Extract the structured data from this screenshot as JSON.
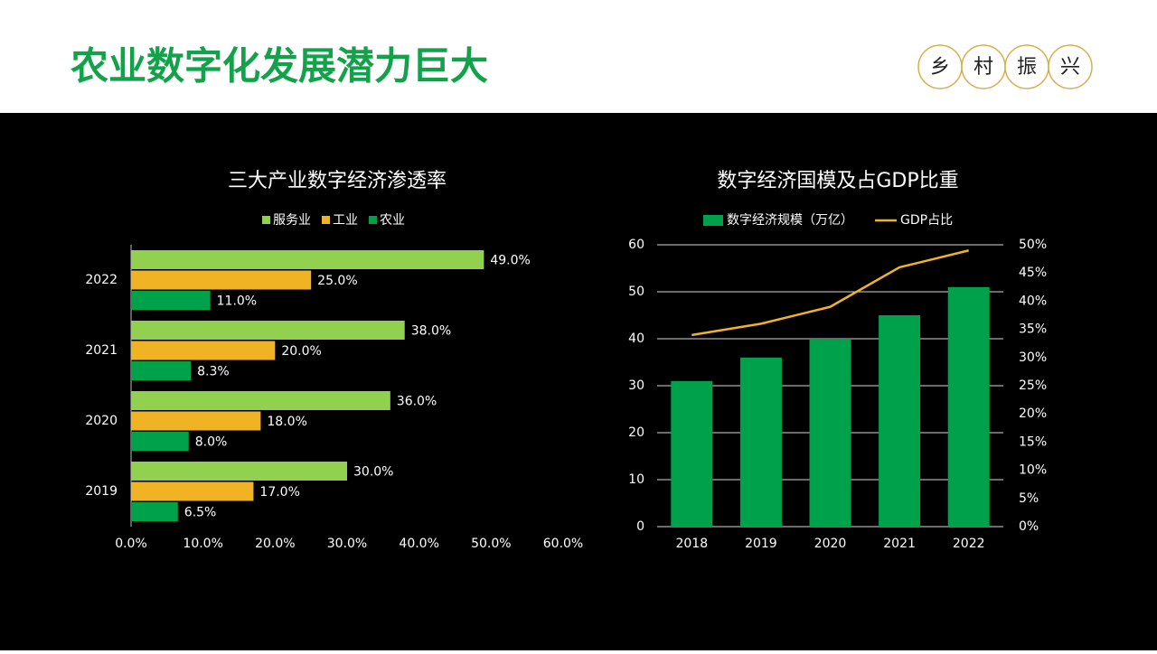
{
  "header": {
    "title": "农业数字化发展潜力巨大",
    "badge": [
      "乡",
      "村",
      "振",
      "兴"
    ]
  },
  "chart_data": [
    {
      "type": "hbar",
      "title": "三大产业数字经济渗透率",
      "categories": [
        "2019",
        "2020",
        "2021",
        "2022"
      ],
      "series": [
        {
          "name": "服务业",
          "color": "#92d050",
          "values": [
            30,
            36,
            38,
            49
          ],
          "value_labels": [
            "30.0%",
            "36.0%",
            "38.0%",
            "49.0%"
          ]
        },
        {
          "name": "工业",
          "color": "#f0b323",
          "values": [
            17,
            18,
            20,
            25
          ],
          "value_labels": [
            "17.0%",
            "18.0%",
            "20.0%",
            "25.0%"
          ]
        },
        {
          "name": "农业",
          "color": "#00a14b",
          "values": [
            6.5,
            8,
            8.3,
            11
          ],
          "value_labels": [
            "6.5%",
            "8.0%",
            "8.3%",
            "11.0%"
          ]
        }
      ],
      "xlim": [
        0,
        60
      ],
      "xticks": [
        {
          "value": 0,
          "label": "0.0%"
        },
        {
          "value": 10,
          "label": "10.0%"
        },
        {
          "value": 20,
          "label": "20.0%"
        },
        {
          "value": 30,
          "label": "30.0%"
        },
        {
          "value": 40,
          "label": "40.0%"
        },
        {
          "value": 50,
          "label": "50.0%"
        },
        {
          "value": 60,
          "label": "60.0%"
        }
      ],
      "legend": "top"
    },
    {
      "type": "bar-line",
      "title": "数字经济国模及占GDP比重",
      "categories": [
        "2018",
        "2019",
        "2020",
        "2021",
        "2022"
      ],
      "series": [
        {
          "name": "数字经济规模（万亿）",
          "color": "#00a14b",
          "type": "bar",
          "values": [
            31,
            36,
            40,
            45,
            51
          ]
        },
        {
          "name": "GDP占比",
          "color": "#f0b323",
          "type": "line",
          "axis": "y2",
          "values": [
            34,
            36,
            39,
            46,
            49
          ]
        }
      ],
      "ylim": [
        0,
        60
      ],
      "yticks": [
        0,
        10,
        20,
        30,
        40,
        50,
        60
      ],
      "y2lim": [
        0,
        50
      ],
      "y2ticks": [
        {
          "value": 0,
          "label": "0%"
        },
        {
          "value": 5,
          "label": "5%"
        },
        {
          "value": 10,
          "label": "10%"
        },
        {
          "value": 15,
          "label": "15%"
        },
        {
          "value": 20,
          "label": "20%"
        },
        {
          "value": 25,
          "label": "25%"
        },
        {
          "value": 30,
          "label": "30%"
        },
        {
          "value": 35,
          "label": "35%"
        },
        {
          "value": 40,
          "label": "40%"
        },
        {
          "value": 45,
          "label": "45%"
        },
        {
          "value": 50,
          "label": "50%"
        }
      ],
      "grid": true,
      "legend": "top"
    }
  ]
}
